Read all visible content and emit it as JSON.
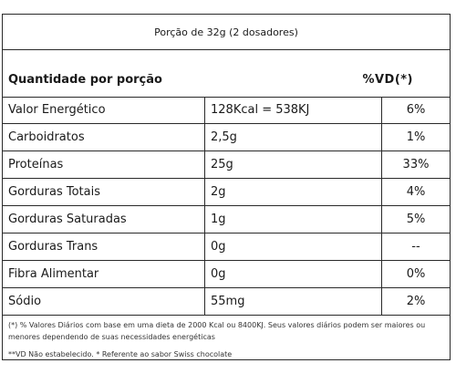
{
  "portion": "Porção de 32g (2 dosadores)",
  "header": {
    "left": "Quantidade por porção",
    "right": "%VD(*)"
  },
  "rows": [
    {
      "name": "Valor Energético",
      "amount": "128Kcal = 538KJ",
      "vd": "6%"
    },
    {
      "name": "Carboidratos",
      "amount": "2,5g",
      "vd": "1%"
    },
    {
      "name": "Proteínas",
      "amount": "25g",
      "vd": "33%"
    },
    {
      "name": "Gorduras Totais",
      "amount": "2g",
      "vd": "4%"
    },
    {
      "name": "Gorduras Saturadas",
      "amount": "1g",
      "vd": "5%"
    },
    {
      "name": "Gorduras Trans",
      "amount": "0g",
      "vd": "--"
    },
    {
      "name": "Fibra Alimentar",
      "amount": "0g",
      "vd": "0%"
    },
    {
      "name": "Sódio",
      "amount": "55mg",
      "vd": "2%"
    }
  ],
  "notes": {
    "daily_values": "(*) % Valores Diários com base em uma dieta de 2000 Kcal ou 8400KJ. Seus valores diários podem ser maiores ou menores dependendo de suas necessidades energéticas",
    "not_established": "**VD Não estabelecido. * Referente ao sabor Swiss chocolate"
  }
}
